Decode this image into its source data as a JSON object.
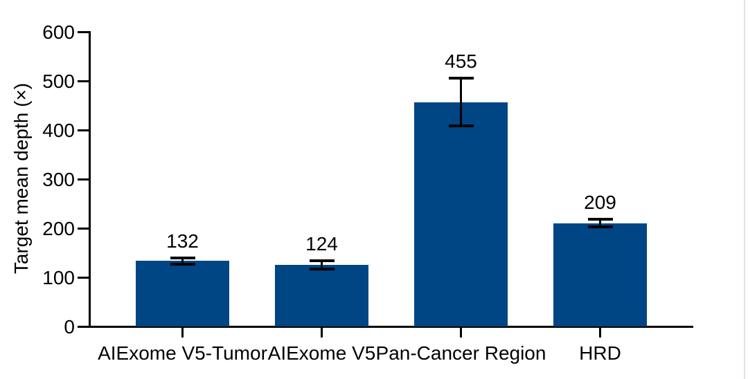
{
  "figure": {
    "background_color": "#ffffff",
    "right_border_color": "#e2e2e2",
    "axis_color": "#000000",
    "text_color": "#000000"
  },
  "chart_data": {
    "type": "bar",
    "title": "",
    "xlabel": "",
    "ylabel": "Target mean depth (×)",
    "categories": [
      "AIExome V5-Tumor",
      "AIExome V5",
      "Pan-Cancer Region",
      "HRD"
    ],
    "values": [
      132,
      124,
      455,
      209
    ],
    "value_labels": [
      "132",
      "124",
      "455",
      "209"
    ],
    "error_bars_plus": [
      8,
      10,
      50,
      9
    ],
    "error_bars_minus": [
      8,
      10,
      50,
      9
    ],
    "ylim": [
      0,
      600
    ],
    "yticks": [
      "0",
      "100",
      "200",
      "300",
      "400",
      "500",
      "600"
    ],
    "ytick_values": [
      0,
      100,
      200,
      300,
      400,
      500,
      600
    ],
    "grid": false,
    "legend_position": "none",
    "bar_color": "#004584",
    "error_bar_color": "#000000"
  }
}
